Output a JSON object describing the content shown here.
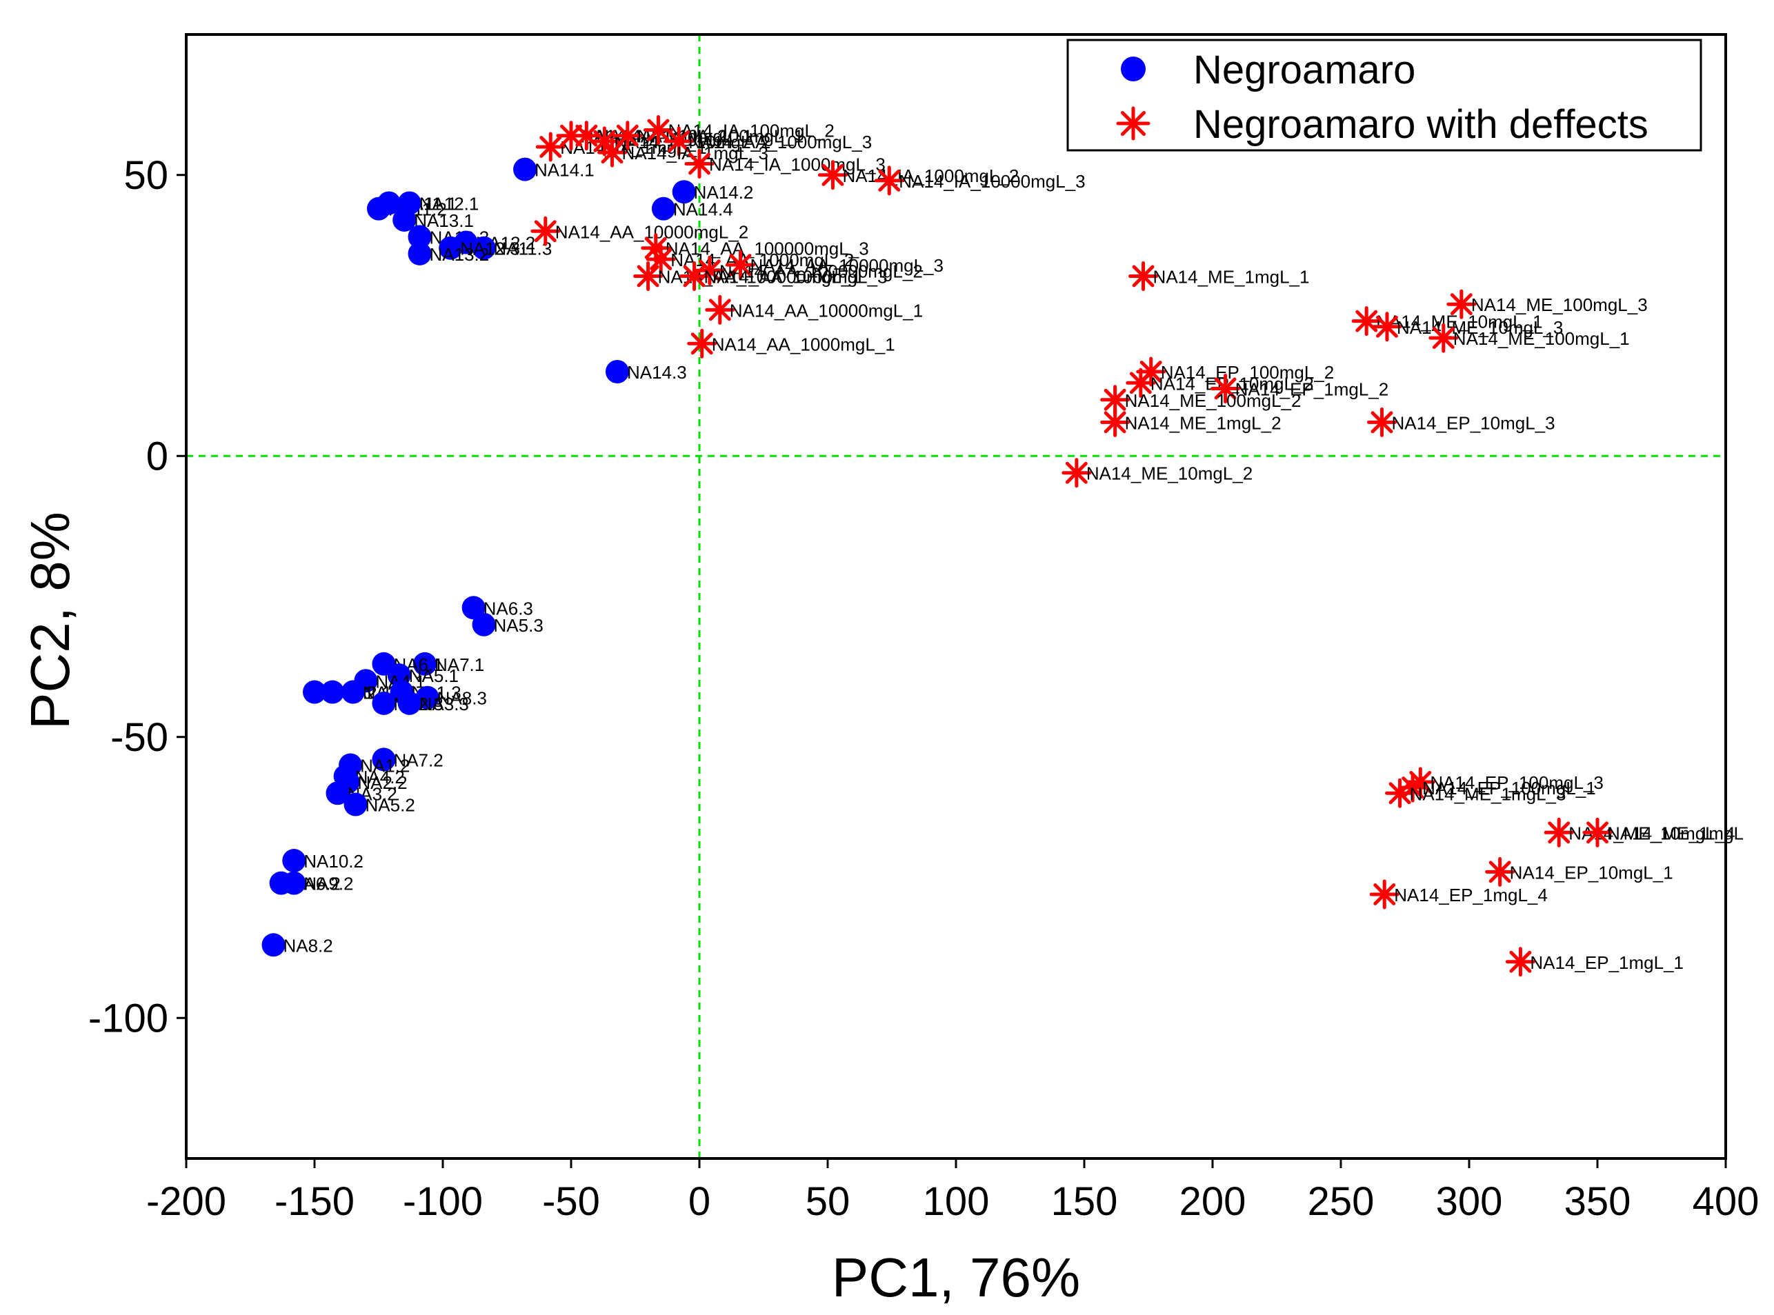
{
  "chart_data": {
    "type": "scatter",
    "title": "",
    "xlabel": "PC1, 76%",
    "ylabel": "PC2, 8%",
    "xlim": [
      -200,
      400
    ],
    "ylim": [
      -125,
      75
    ],
    "xticks": [
      -200,
      -150,
      -100,
      -50,
      0,
      50,
      100,
      150,
      200,
      250,
      300,
      350,
      400
    ],
    "yticks": [
      -100,
      -50,
      0,
      50
    ],
    "reference_lines": {
      "x": 0,
      "y": 0,
      "color": "#00dd00",
      "style": "dashed"
    },
    "grid": false,
    "legend_position": "top-right",
    "colors": {
      "series1": "#0000ff",
      "series2": "#ff0000"
    },
    "series": [
      {
        "name": "Negroamaro",
        "marker": "circle",
        "points": [
          {
            "x": -68,
            "y": 51,
            "label": "NA14.1"
          },
          {
            "x": -6,
            "y": 47,
            "label": "NA14.2"
          },
          {
            "x": -14,
            "y": 44,
            "label": "NA14.4"
          },
          {
            "x": -32,
            "y": 15,
            "label": "NA14.3"
          },
          {
            "x": -125,
            "y": 44,
            "label": "NA11.2"
          },
          {
            "x": -121,
            "y": 45,
            "label": "NA11.1"
          },
          {
            "x": -113,
            "y": 45,
            "label": "NA12.1"
          },
          {
            "x": -115,
            "y": 42,
            "label": "NA13.1"
          },
          {
            "x": -109,
            "y": 39,
            "label": "NA13.3"
          },
          {
            "x": -91,
            "y": 38,
            "label": "NA12.2"
          },
          {
            "x": -84,
            "y": 37,
            "label": "NA11.3"
          },
          {
            "x": -97,
            "y": 37,
            "label": "NA12.3"
          },
          {
            "x": -109,
            "y": 36,
            "label": "NA13.2"
          },
          {
            "x": -88,
            "y": -27,
            "label": "NA6.3"
          },
          {
            "x": -84,
            "y": -30,
            "label": "NA5.3"
          },
          {
            "x": -107,
            "y": -37,
            "label": "NA7.1"
          },
          {
            "x": -123,
            "y": -37,
            "label": "NA6.1"
          },
          {
            "x": -117,
            "y": -39,
            "label": "NA5.1"
          },
          {
            "x": -130,
            "y": -40,
            "label": "NA4.1"
          },
          {
            "x": -150,
            "y": -42,
            "label": "NA1.1"
          },
          {
            "x": -143,
            "y": -42,
            "label": "NA2.1"
          },
          {
            "x": -135,
            "y": -42,
            "label": "NA3.1"
          },
          {
            "x": -116,
            "y": -42,
            "label": "NA1.3"
          },
          {
            "x": -106,
            "y": -43,
            "label": "NA8.3"
          },
          {
            "x": -123,
            "y": -44,
            "label": "NA2.3"
          },
          {
            "x": -113,
            "y": -44,
            "label": "NA3.3"
          },
          {
            "x": -123,
            "y": -54,
            "label": "NA7.2"
          },
          {
            "x": -136,
            "y": -55,
            "label": "NA1.2"
          },
          {
            "x": -138,
            "y": -57,
            "label": "NA4.2"
          },
          {
            "x": -137,
            "y": -58,
            "label": "NA2.2"
          },
          {
            "x": -141,
            "y": -60,
            "label": "NA3.2"
          },
          {
            "x": -134,
            "y": -62,
            "label": "NA5.2"
          },
          {
            "x": -158,
            "y": -72,
            "label": "NA10.2"
          },
          {
            "x": -163,
            "y": -76,
            "label": "NA6.2"
          },
          {
            "x": -158,
            "y": -76,
            "label": "NA9.2"
          },
          {
            "x": -166,
            "y": -87,
            "label": "NA8.2"
          }
        ]
      },
      {
        "name": "Negroamaro with deffects",
        "marker": "asterisk",
        "points": [
          {
            "x": -58,
            "y": 55,
            "label": "NA14_IA_1mgL_1"
          },
          {
            "x": -50,
            "y": 57,
            "label": "NA14_IA_1mgL_2"
          },
          {
            "x": -44,
            "y": 57,
            "label": "NA14_IA_10mgL_1"
          },
          {
            "x": -37,
            "y": 56,
            "label": "NA14_IA_10mgL_2"
          },
          {
            "x": -28,
            "y": 57,
            "label": "NA14_IA_100mgL_1"
          },
          {
            "x": -16,
            "y": 58,
            "label": "NA14_IA_100mgL_2"
          },
          {
            "x": -8,
            "y": 56,
            "label": "NA14_AA_1000mgL_3"
          },
          {
            "x": -34,
            "y": 54,
            "label": "NA14_IA_1mgL_3"
          },
          {
            "x": 0,
            "y": 52,
            "label": "NA14_IA_1000mgL_3"
          },
          {
            "x": 52,
            "y": 50,
            "label": "NA14_IA_1000mgL_2"
          },
          {
            "x": 74,
            "y": 49,
            "label": "NA14_IA_10000mgL_3"
          },
          {
            "x": -60,
            "y": 40,
            "label": "NA14_AA_10000mgL_2"
          },
          {
            "x": -17,
            "y": 37,
            "label": "NA14_AA_100000mgL_3"
          },
          {
            "x": -15,
            "y": 35,
            "label": "NA14_AA_1000mgL_2"
          },
          {
            "x": 4,
            "y": 33,
            "label": "NA14_AA_100000mgL_2"
          },
          {
            "x": 16,
            "y": 34,
            "label": "NA14_AA_10000mgL_3"
          },
          {
            "x": -20,
            "y": 32,
            "label": "NA14_AA_100000mgL_1"
          },
          {
            "x": -2,
            "y": 32,
            "label": "NA14_AA_1000mgL_3"
          },
          {
            "x": 8,
            "y": 26,
            "label": "NA14_AA_10000mgL_1"
          },
          {
            "x": 1,
            "y": 20,
            "label": "NA14_AA_1000mgL_1"
          },
          {
            "x": 173,
            "y": 32,
            "label": "NA14_ME_1mgL_1"
          },
          {
            "x": 297,
            "y": 27,
            "label": "NA14_ME_100mgL_3"
          },
          {
            "x": 260,
            "y": 24,
            "label": "NA14_ME_10mgL_1"
          },
          {
            "x": 268,
            "y": 23,
            "label": "NA14_ME_10mgL_3"
          },
          {
            "x": 290,
            "y": 21,
            "label": "NA14_ME_100mgL_1"
          },
          {
            "x": 176,
            "y": 15,
            "label": "NA14_EP_100mgL_2"
          },
          {
            "x": 172,
            "y": 13,
            "label": "NA14_EP_10mgL_2"
          },
          {
            "x": 205,
            "y": 12,
            "label": "NA14_EP_1mgL_2"
          },
          {
            "x": 162,
            "y": 10,
            "label": "NA14_ME_100mgL_2"
          },
          {
            "x": 162,
            "y": 6,
            "label": "NA14_ME_1mgL_2"
          },
          {
            "x": 266,
            "y": 6,
            "label": "NA14_EP_10mgL_3"
          },
          {
            "x": 147,
            "y": -3,
            "label": "NA14_ME_10mgL_2"
          },
          {
            "x": 281,
            "y": -58,
            "label": "NA14_EP_100mgL_3"
          },
          {
            "x": 278,
            "y": -59,
            "label": "NA14_EP_100mgL_1"
          },
          {
            "x": 273,
            "y": -60,
            "label": "NA14_ME_1mgL_3"
          },
          {
            "x": 335,
            "y": -67,
            "label": "NA14_ME_10mgL_4"
          },
          {
            "x": 350,
            "y": -67,
            "label": "NA14_ME_1mgL"
          },
          {
            "x": 312,
            "y": -74,
            "label": "NA14_EP_10mgL_1"
          },
          {
            "x": 267,
            "y": -78,
            "label": "NA14_EP_1mgL_4"
          },
          {
            "x": 320,
            "y": -90,
            "label": "NA14_EP_1mgL_1"
          }
        ]
      }
    ]
  }
}
